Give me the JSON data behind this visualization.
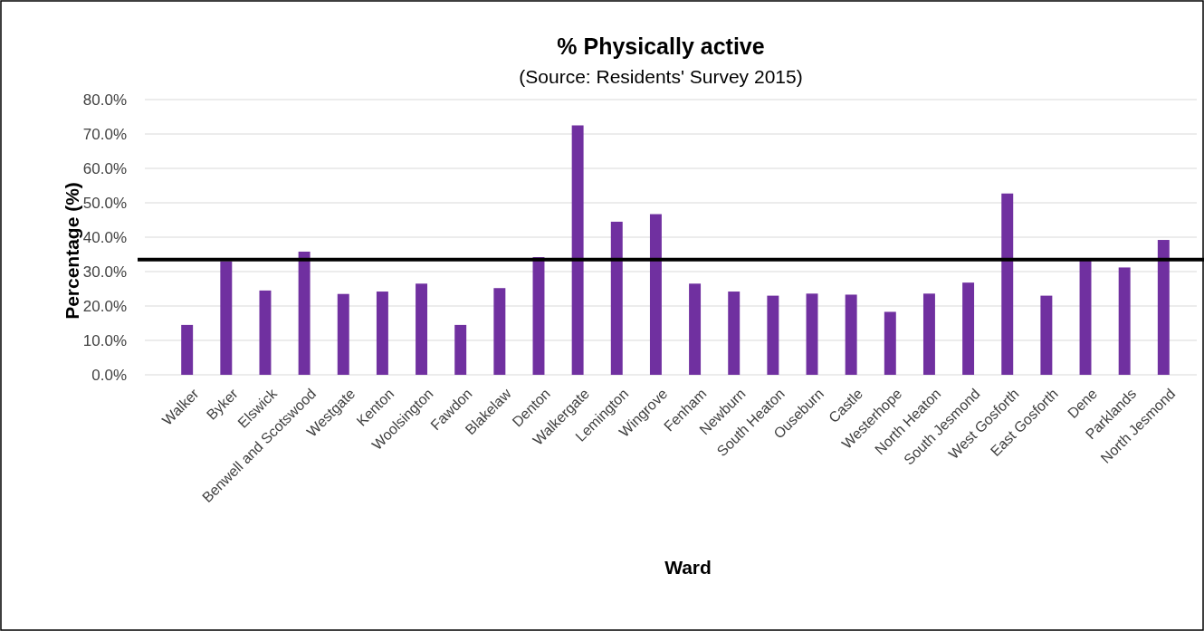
{
  "chart_data": {
    "type": "bar",
    "title": "% Physically active",
    "subtitle": "(Source: Residents' Survey 2015)",
    "xlabel": "Ward",
    "ylabel": "Percentage (%)",
    "categories": [
      "Walker",
      "Byker",
      "Elswick",
      "Benwell and Scotswood",
      "Westgate",
      "Kenton",
      "Woolsington",
      "Fawdon",
      "Blakelaw",
      "Denton",
      "Walkergate",
      "Lemington",
      "Wingrove",
      "Fenham",
      "Newburn",
      "South Heaton",
      "Ouseburn",
      "Castle",
      "Westerhope",
      "North Heaton",
      "South Jesmond",
      "West Gosforth",
      "East Gosforth",
      "Dene",
      "Parklands",
      "North Jesmond"
    ],
    "values": [
      14.5,
      33,
      24.5,
      35.8,
      23.5,
      24.2,
      26.5,
      14.5,
      25.2,
      34.2,
      72.5,
      44.5,
      46.7,
      26.5,
      24.2,
      23,
      23.6,
      23.3,
      18.3,
      23.6,
      26.8,
      52.7,
      23,
      33.5,
      31.2,
      39.2
    ],
    "color": "#7030a0",
    "ylim": [
      0,
      80
    ],
    "yticks": [
      {
        "value": 0,
        "label": "0.0%"
      },
      {
        "value": 10,
        "label": "10.0%"
      },
      {
        "value": 20,
        "label": "20.0%"
      },
      {
        "value": 30,
        "label": "30.0%"
      },
      {
        "value": 40,
        "label": "40.0%"
      },
      {
        "value": 50,
        "label": "50.0%"
      },
      {
        "value": 60,
        "label": "60.0%"
      },
      {
        "value": 70,
        "label": "70.0%"
      },
      {
        "value": 80,
        "label": "80.0%"
      }
    ],
    "grid": "y",
    "ref_lines": [
      {
        "axis": "y",
        "value": 33.5,
        "color": "#000000"
      }
    ]
  }
}
